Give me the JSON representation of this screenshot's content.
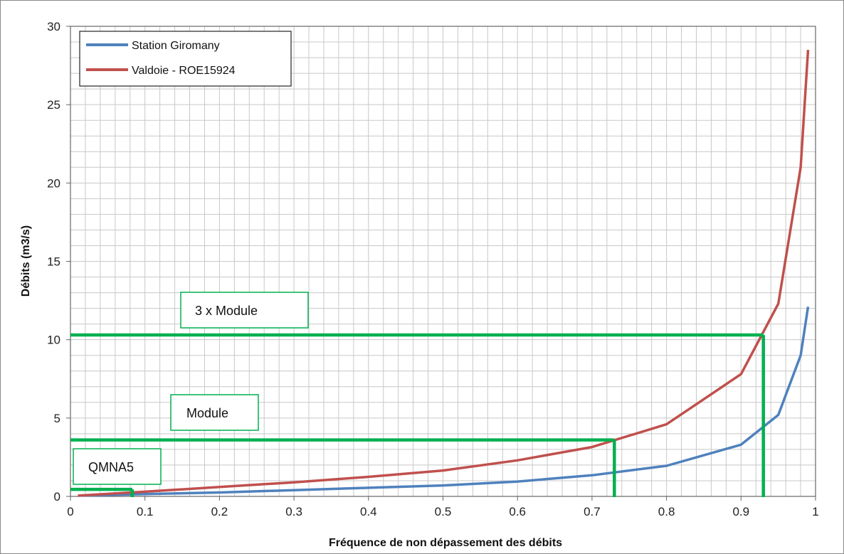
{
  "chart_data": {
    "type": "line",
    "title": "",
    "xlabel": "Fréquence de non dépassement des débits",
    "ylabel": "Débits (m3/s)",
    "xlim": [
      0,
      1
    ],
    "ylim": [
      0,
      30
    ],
    "xticks": [
      "0",
      "0.1",
      "0.2",
      "0.3",
      "0.4",
      "0.5",
      "0.6",
      "0.7",
      "0.8",
      "0.9",
      "1"
    ],
    "yticks": [
      "0",
      "5",
      "10",
      "15",
      "20",
      "25",
      "30"
    ],
    "grid": true,
    "legend_position": "top-left",
    "series": [
      {
        "name": "Station Giromany",
        "color": "#4f81bd",
        "x": [
          0.01,
          0.1,
          0.2,
          0.3,
          0.4,
          0.5,
          0.6,
          0.7,
          0.8,
          0.9,
          0.95,
          0.98,
          0.99
        ],
        "y": [
          0.05,
          0.15,
          0.25,
          0.4,
          0.55,
          0.7,
          0.95,
          1.35,
          1.95,
          3.3,
          5.2,
          9.0,
          12.1
        ]
      },
      {
        "name": "Valdoie - ROE15924",
        "color": "#c0504d",
        "x": [
          0.01,
          0.1,
          0.2,
          0.3,
          0.4,
          0.5,
          0.6,
          0.7,
          0.8,
          0.9,
          0.95,
          0.98,
          0.99
        ],
        "y": [
          0.05,
          0.3,
          0.6,
          0.9,
          1.25,
          1.65,
          2.3,
          3.15,
          4.6,
          7.8,
          12.3,
          21.0,
          28.5
        ]
      }
    ],
    "annotations": [
      {
        "label": "3 x Module",
        "y": 10.3,
        "x_end": 0.93,
        "color": "#00b050"
      },
      {
        "label": "Module",
        "y": 3.6,
        "x_end": 0.73,
        "color": "#00b050"
      },
      {
        "label": "QMNA5",
        "y": 0.45,
        "x_end": 0.083,
        "color": "#00b050"
      }
    ]
  }
}
